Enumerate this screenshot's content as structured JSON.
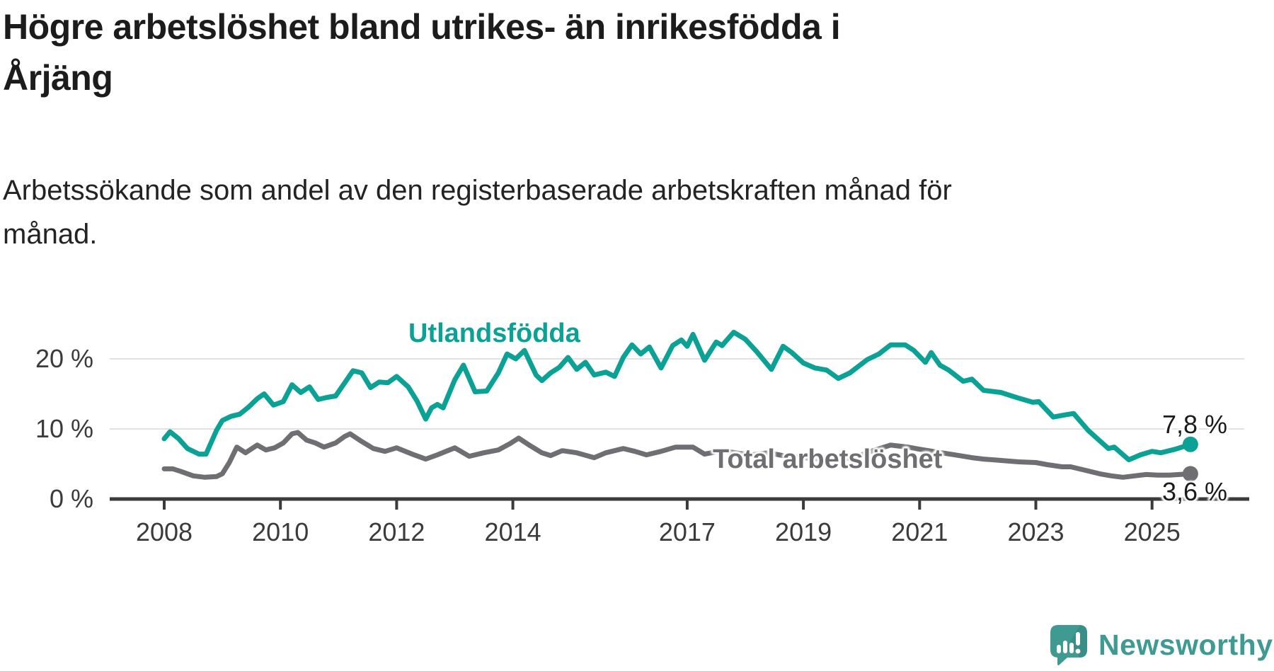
{
  "header": {
    "title": "Högre arbetslöshet bland utrikes- än inrikesfödda i Årjäng",
    "title_lines": "Högre arbetslöshet bland utrikes- än inrikesfödda i\nÅrjäng",
    "subtitle": "Arbetssökande som andel av den registerbaserade arbetskraften månad för månad.",
    "subtitle_lines": "Arbetssökande som andel av den registerbaserade arbetskraften månad för\nmånad."
  },
  "footer": {
    "brand": "Newsworthy",
    "brand_icon": "newsworthy-speech-bubble-bar-chart-icon"
  },
  "colors": {
    "foreign_born_series": "#0BA295",
    "total_series": "#6F6F73",
    "axis": "#3B3B3B",
    "gridline": "#E2E2E2",
    "annotation_text": "#1B1B1B",
    "brand_teal": "#3F9A92"
  },
  "chart_data": {
    "type": "line",
    "title": "Högre arbetslöshet bland utrikes- än inrikesfödda i Årjäng",
    "subtitle": "Arbetssökande som andel av den registerbaserade arbetskraften månad för månad.",
    "unit": "%",
    "grid": "horizontal-only",
    "legend_position": "inline-labels-on-lines",
    "x_axis": {
      "min": 2007.9,
      "max": 2025.9,
      "ticks": [
        {
          "value": 2008,
          "label": "2008"
        },
        {
          "value": 2010,
          "label": "2010"
        },
        {
          "value": 2012,
          "label": "2012"
        },
        {
          "value": 2014,
          "label": "2014"
        },
        {
          "value": 2017,
          "label": "2017"
        },
        {
          "value": 2019,
          "label": "2019"
        },
        {
          "value": 2021,
          "label": "2021"
        },
        {
          "value": 2023,
          "label": "2023"
        },
        {
          "value": 2025,
          "label": "2025"
        }
      ]
    },
    "y_axis": {
      "min": 0,
      "max": 25,
      "gridlines": [
        10,
        20
      ],
      "tick_labels": [
        {
          "value": 20,
          "label": "20 %"
        },
        {
          "value": 10,
          "label": "10 %"
        },
        {
          "value": 0,
          "label": "0 %"
        }
      ]
    },
    "series": [
      {
        "name": "Utlandsfödda",
        "color": "#0BA295",
        "end_label": "7,8 %",
        "end_value": 7.8,
        "points": [
          [
            2008.0,
            8.6
          ],
          [
            2008.1,
            9.6
          ],
          [
            2008.25,
            8.6
          ],
          [
            2008.4,
            7.2
          ],
          [
            2008.6,
            6.4
          ],
          [
            2008.72,
            6.4
          ],
          [
            2008.9,
            9.8
          ],
          [
            2009.0,
            11.2
          ],
          [
            2009.15,
            11.8
          ],
          [
            2009.3,
            12.1
          ],
          [
            2009.45,
            13.1
          ],
          [
            2009.6,
            14.3
          ],
          [
            2009.72,
            15.0
          ],
          [
            2009.88,
            13.4
          ],
          [
            2010.05,
            13.9
          ],
          [
            2010.2,
            16.3
          ],
          [
            2010.35,
            15.2
          ],
          [
            2010.5,
            16.0
          ],
          [
            2010.65,
            14.2
          ],
          [
            2010.8,
            14.5
          ],
          [
            2010.95,
            14.7
          ],
          [
            2011.1,
            16.5
          ],
          [
            2011.25,
            18.3
          ],
          [
            2011.4,
            18.0
          ],
          [
            2011.55,
            15.9
          ],
          [
            2011.7,
            16.7
          ],
          [
            2011.85,
            16.6
          ],
          [
            2012.0,
            17.5
          ],
          [
            2012.2,
            16.0
          ],
          [
            2012.35,
            14.0
          ],
          [
            2012.5,
            11.4
          ],
          [
            2012.6,
            13.0
          ],
          [
            2012.7,
            13.5
          ],
          [
            2012.8,
            13.0
          ],
          [
            2013.0,
            17.0
          ],
          [
            2013.15,
            19.1
          ],
          [
            2013.35,
            15.3
          ],
          [
            2013.55,
            15.4
          ],
          [
            2013.75,
            18.0
          ],
          [
            2013.9,
            20.7
          ],
          [
            2014.05,
            20.0
          ],
          [
            2014.2,
            21.2
          ],
          [
            2014.4,
            17.7
          ],
          [
            2014.5,
            16.9
          ],
          [
            2014.65,
            18.0
          ],
          [
            2014.8,
            18.8
          ],
          [
            2014.95,
            20.2
          ],
          [
            2015.1,
            18.5
          ],
          [
            2015.25,
            19.5
          ],
          [
            2015.4,
            17.7
          ],
          [
            2015.6,
            18.1
          ],
          [
            2015.75,
            17.5
          ],
          [
            2015.9,
            20.2
          ],
          [
            2016.05,
            22.0
          ],
          [
            2016.2,
            20.7
          ],
          [
            2016.35,
            21.7
          ],
          [
            2016.55,
            18.7
          ],
          [
            2016.75,
            21.9
          ],
          [
            2016.9,
            22.7
          ],
          [
            2017.0,
            21.8
          ],
          [
            2017.1,
            23.5
          ],
          [
            2017.3,
            19.8
          ],
          [
            2017.5,
            22.4
          ],
          [
            2017.6,
            21.9
          ],
          [
            2017.8,
            23.8
          ],
          [
            2018.0,
            22.8
          ],
          [
            2018.2,
            21.0
          ],
          [
            2018.45,
            18.5
          ],
          [
            2018.65,
            21.8
          ],
          [
            2018.8,
            20.9
          ],
          [
            2019.0,
            19.4
          ],
          [
            2019.2,
            18.7
          ],
          [
            2019.4,
            18.4
          ],
          [
            2019.6,
            17.2
          ],
          [
            2019.8,
            18.0
          ],
          [
            2020.1,
            19.9
          ],
          [
            2020.3,
            20.7
          ],
          [
            2020.5,
            22.0
          ],
          [
            2020.75,
            22.0
          ],
          [
            2020.9,
            21.2
          ],
          [
            2021.1,
            19.5
          ],
          [
            2021.2,
            20.9
          ],
          [
            2021.35,
            19.1
          ],
          [
            2021.5,
            18.4
          ],
          [
            2021.75,
            16.8
          ],
          [
            2021.9,
            17.1
          ],
          [
            2022.1,
            15.5
          ],
          [
            2022.4,
            15.2
          ],
          [
            2022.7,
            14.4
          ],
          [
            2022.95,
            13.8
          ],
          [
            2023.05,
            13.9
          ],
          [
            2023.3,
            11.7
          ],
          [
            2023.5,
            12.0
          ],
          [
            2023.65,
            12.2
          ],
          [
            2023.9,
            9.8
          ],
          [
            2024.1,
            8.3
          ],
          [
            2024.25,
            7.2
          ],
          [
            2024.35,
            7.4
          ],
          [
            2024.6,
            5.6
          ],
          [
            2024.8,
            6.3
          ],
          [
            2025.0,
            6.8
          ],
          [
            2025.15,
            6.6
          ],
          [
            2025.4,
            7.1
          ],
          [
            2025.66,
            7.8
          ]
        ]
      },
      {
        "name": "Total arbetslöshet",
        "color": "#6F6F73",
        "end_label": "3,6 %",
        "end_value": 3.6,
        "points": [
          [
            2008.0,
            4.3
          ],
          [
            2008.15,
            4.3
          ],
          [
            2008.3,
            3.9
          ],
          [
            2008.5,
            3.3
          ],
          [
            2008.7,
            3.1
          ],
          [
            2008.9,
            3.2
          ],
          [
            2009.0,
            3.6
          ],
          [
            2009.12,
            5.2
          ],
          [
            2009.25,
            7.4
          ],
          [
            2009.4,
            6.6
          ],
          [
            2009.6,
            7.7
          ],
          [
            2009.75,
            7.0
          ],
          [
            2009.9,
            7.3
          ],
          [
            2010.05,
            8.0
          ],
          [
            2010.2,
            9.3
          ],
          [
            2010.3,
            9.5
          ],
          [
            2010.45,
            8.4
          ],
          [
            2010.6,
            8.0
          ],
          [
            2010.75,
            7.4
          ],
          [
            2010.95,
            8.0
          ],
          [
            2011.1,
            8.9
          ],
          [
            2011.2,
            9.3
          ],
          [
            2011.4,
            8.2
          ],
          [
            2011.6,
            7.2
          ],
          [
            2011.8,
            6.8
          ],
          [
            2012.0,
            7.3
          ],
          [
            2012.3,
            6.3
          ],
          [
            2012.5,
            5.7
          ],
          [
            2012.7,
            6.3
          ],
          [
            2013.0,
            7.3
          ],
          [
            2013.25,
            6.1
          ],
          [
            2013.5,
            6.6
          ],
          [
            2013.75,
            7.0
          ],
          [
            2013.95,
            7.9
          ],
          [
            2014.1,
            8.7
          ],
          [
            2014.3,
            7.6
          ],
          [
            2014.5,
            6.6
          ],
          [
            2014.65,
            6.2
          ],
          [
            2014.85,
            6.9
          ],
          [
            2015.1,
            6.6
          ],
          [
            2015.4,
            5.9
          ],
          [
            2015.6,
            6.6
          ],
          [
            2015.9,
            7.2
          ],
          [
            2016.1,
            6.8
          ],
          [
            2016.3,
            6.3
          ],
          [
            2016.55,
            6.8
          ],
          [
            2016.8,
            7.4
          ],
          [
            2017.1,
            7.4
          ],
          [
            2017.3,
            6.4
          ],
          [
            2017.6,
            6.9
          ],
          [
            2017.9,
            6.5
          ],
          [
            2018.1,
            6.3
          ],
          [
            2018.4,
            6.6
          ],
          [
            2018.7,
            6.1
          ],
          [
            2019.0,
            5.9
          ],
          [
            2019.3,
            5.7
          ],
          [
            2019.6,
            5.6
          ],
          [
            2019.9,
            6.0
          ],
          [
            2020.2,
            6.9
          ],
          [
            2020.5,
            7.7
          ],
          [
            2020.8,
            7.4
          ],
          [
            2021.0,
            7.1
          ],
          [
            2021.3,
            6.7
          ],
          [
            2021.6,
            6.3
          ],
          [
            2021.9,
            5.9
          ],
          [
            2022.1,
            5.7
          ],
          [
            2022.4,
            5.5
          ],
          [
            2022.7,
            5.3
          ],
          [
            2023.0,
            5.2
          ],
          [
            2023.2,
            4.9
          ],
          [
            2023.45,
            4.6
          ],
          [
            2023.6,
            4.6
          ],
          [
            2023.9,
            4.0
          ],
          [
            2024.1,
            3.6
          ],
          [
            2024.3,
            3.3
          ],
          [
            2024.5,
            3.1
          ],
          [
            2024.7,
            3.3
          ],
          [
            2024.9,
            3.5
          ],
          [
            2025.1,
            3.4
          ],
          [
            2025.3,
            3.4
          ],
          [
            2025.66,
            3.6
          ]
        ]
      }
    ]
  }
}
